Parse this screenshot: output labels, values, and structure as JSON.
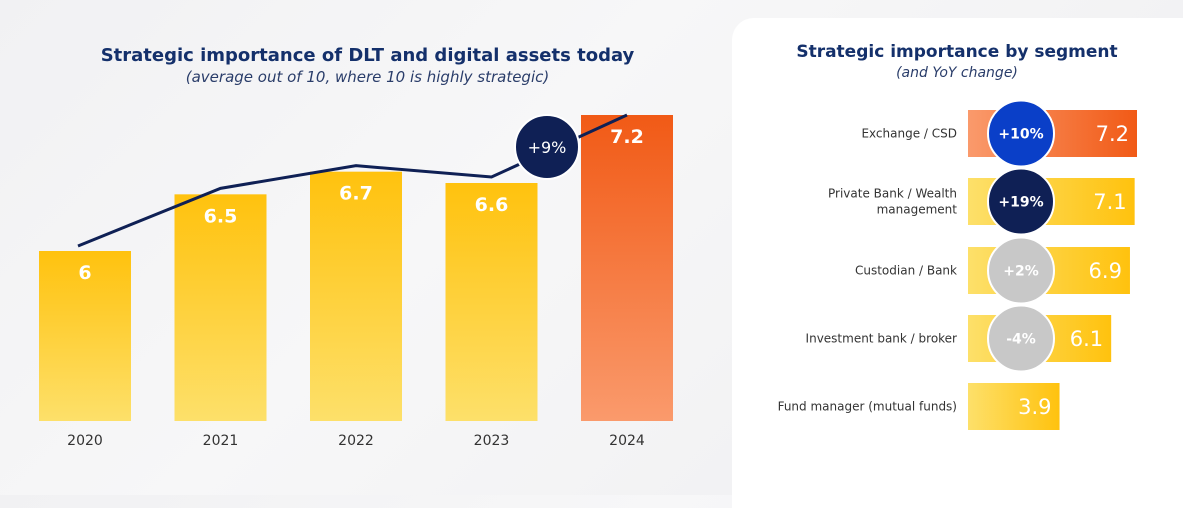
{
  "chart_data": [
    {
      "type": "bar",
      "title": "Strategic importance of DLT and digital assets today",
      "subtitle": "(average out of 10, where 10 is highly strategic)",
      "categories": [
        "2020",
        "2021",
        "2022",
        "2023",
        "2024"
      ],
      "values": [
        6,
        6.5,
        6.7,
        6.6,
        7.2
      ],
      "value_labels": [
        "6",
        "6.5",
        "6.7",
        "6.6",
        "7.2"
      ],
      "trend_line": true,
      "annotation": "+9%",
      "highlight_category": "2024",
      "ylim": [
        0,
        8
      ],
      "colors": {
        "bar": "#ffc20e",
        "bar_light": "#fde06a",
        "highlight": "#f15a16",
        "highlight_light": "#fa9a6c",
        "line": "#0f2055",
        "badge": "#0f2055"
      }
    },
    {
      "type": "bar",
      "orientation": "horizontal",
      "title": "Strategic importance by segment",
      "subtitle": "(and YoY change)",
      "categories": [
        [
          "Exchange / CSD"
        ],
        [
          "Private Bank / Wealth",
          "management"
        ],
        [
          "Custodian / Bank"
        ],
        [
          "Investment bank / broker"
        ],
        [
          "Fund manager (mutual funds)"
        ]
      ],
      "values": [
        7.2,
        7.1,
        6.9,
        6.1,
        3.9
      ],
      "value_labels": [
        "7.2",
        "7.1",
        "6.9",
        "6.1",
        "3.9"
      ],
      "yoy_change": [
        "+10%",
        "+19%",
        "+2%",
        "-4%",
        null
      ],
      "badge_style": [
        "blue",
        "navy",
        "grey",
        "grey",
        null
      ],
      "xlim": [
        0,
        10
      ],
      "colors": {
        "bar": "#ffc20e",
        "bar_light": "#fde06a",
        "highlight": "#f15a16",
        "badge_blue": "#0a3fc8",
        "badge_navy": "#0f2055",
        "badge_grey": "#c8c8c8"
      }
    }
  ]
}
